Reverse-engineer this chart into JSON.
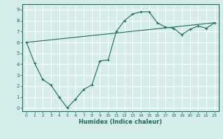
{
  "line1_x": [
    0,
    1,
    2,
    3,
    4,
    5,
    6,
    7,
    8,
    9,
    10,
    11,
    12,
    13,
    14,
    15,
    16,
    17,
    18,
    19,
    20,
    21,
    22,
    23
  ],
  "line1_y": [
    6.0,
    4.1,
    2.6,
    2.1,
    1.0,
    0.0,
    0.8,
    1.7,
    2.1,
    4.3,
    4.4,
    7.0,
    8.0,
    8.6,
    8.8,
    8.8,
    7.8,
    7.4,
    7.3,
    6.7,
    7.2,
    7.5,
    7.3,
    7.8
  ],
  "line2_x": [
    0,
    23
  ],
  "line2_y": [
    6.0,
    7.8
  ],
  "line_color": "#1a6b5a",
  "bg_color": "#d4ecea",
  "grid_color": "#ffffff",
  "xlabel": "Humidex (Indice chaleur)",
  "xlim": [
    -0.5,
    23.5
  ],
  "ylim": [
    -0.3,
    9.5
  ],
  "xticks": [
    0,
    1,
    2,
    3,
    4,
    5,
    6,
    7,
    8,
    9,
    10,
    11,
    12,
    13,
    14,
    15,
    16,
    17,
    18,
    19,
    20,
    21,
    22,
    23
  ],
  "yticks": [
    0,
    1,
    2,
    3,
    4,
    5,
    6,
    7,
    8,
    9
  ]
}
